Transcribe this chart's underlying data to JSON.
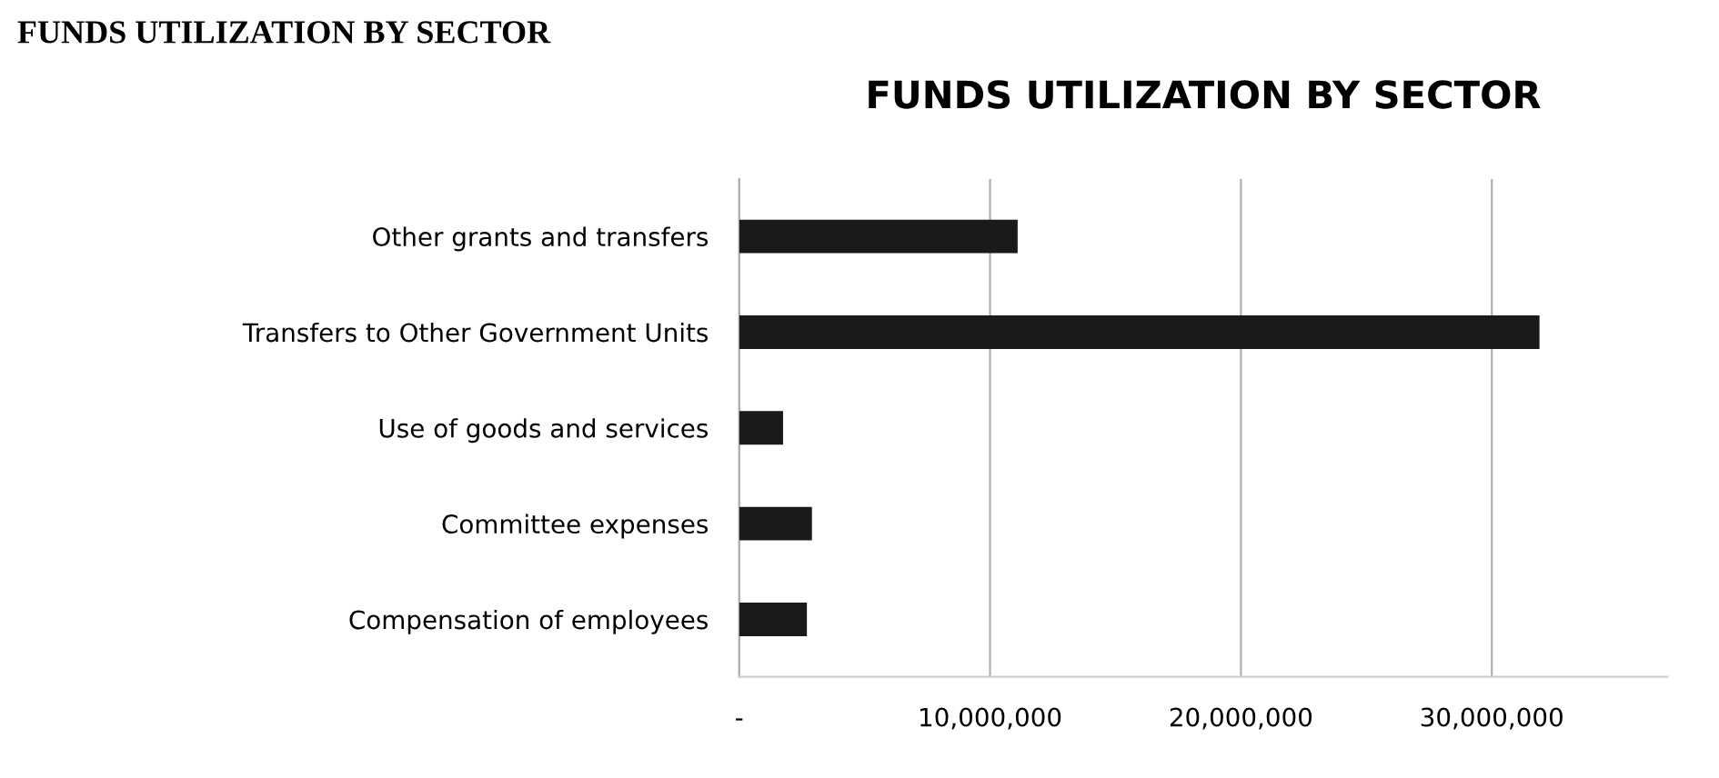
{
  "chart_data": {
    "type": "bar",
    "orientation": "horizontal",
    "title": "FUNDS UTILIZATION BY SECTOR",
    "annotations": [
      "FUNDS UTILIZATION BY SECTOR"
    ],
    "categories": [
      "Other grants and transfers",
      "Transfers to Other Government Units",
      "Use of goods and services",
      "Committee expenses",
      "Compensation of employees"
    ],
    "values": [
      11100000,
      31900000,
      1750000,
      2900000,
      2700000
    ],
    "color": "#1a1a1a",
    "xlim": [
      0,
      37000000
    ],
    "xticks": [
      {
        "value": 0,
        "label": "-"
      },
      {
        "value": 10000000,
        "label": "10,000,000"
      },
      {
        "value": 20000000,
        "label": "20,000,000"
      },
      {
        "value": 30000000,
        "label": "30,000,000"
      }
    ],
    "grid": "x"
  }
}
